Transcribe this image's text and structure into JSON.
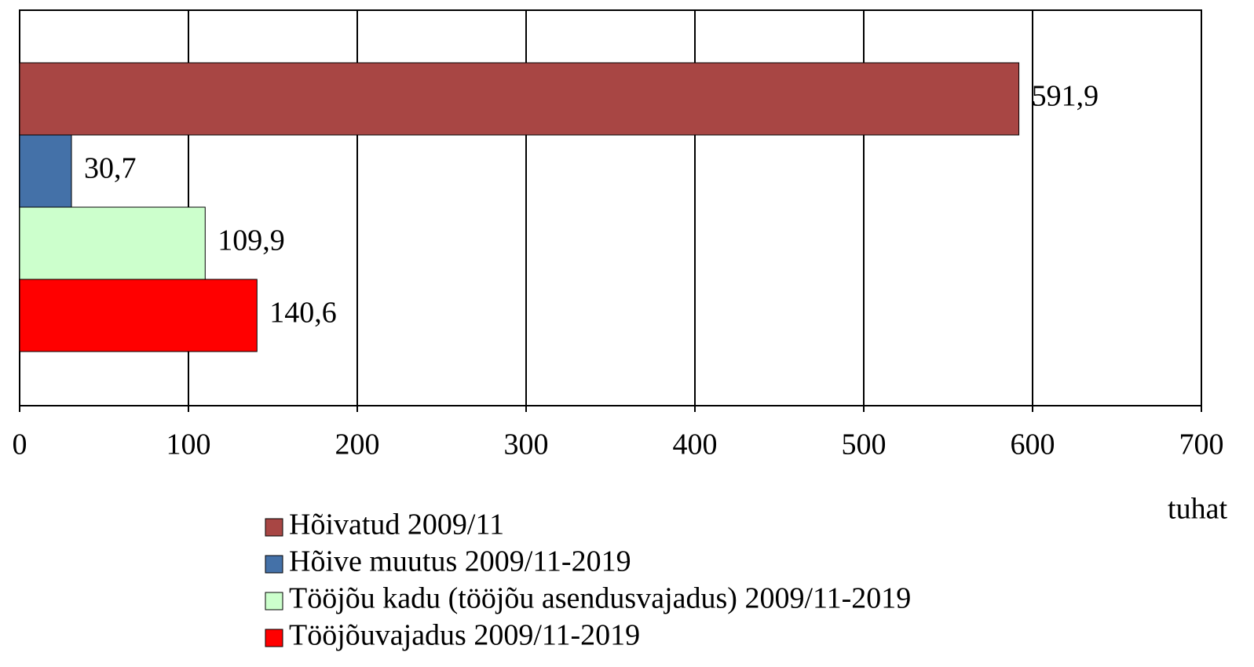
{
  "chart_data": {
    "type": "bar",
    "orientation": "horizontal",
    "series": [
      {
        "name": "Hõivatud 2009/11",
        "color": "#a84644",
        "values": [
          591.9
        ],
        "value_labels": [
          "591,9"
        ]
      },
      {
        "name": "Hõive muutus 2009/11-2019",
        "color": "#4471a8",
        "values": [
          30.7
        ],
        "value_labels": [
          "30,7"
        ]
      },
      {
        "name": "Tööjõu kadu (tööjõu asendusvajadus) 2009/11-2019",
        "color": "#ccffcc",
        "values": [
          109.9
        ],
        "value_labels": [
          "109,9"
        ]
      },
      {
        "name": "Tööjõuvajadus 2009/11-2019",
        "color": "#ff0000",
        "values": [
          140.6
        ],
        "value_labels": [
          "140,6"
        ]
      }
    ],
    "xlim": [
      0,
      700
    ],
    "xticks": [
      0,
      100,
      200,
      300,
      400,
      500,
      600,
      700
    ],
    "xlabel": "tuhat",
    "grid": true,
    "legend": "bottom"
  }
}
